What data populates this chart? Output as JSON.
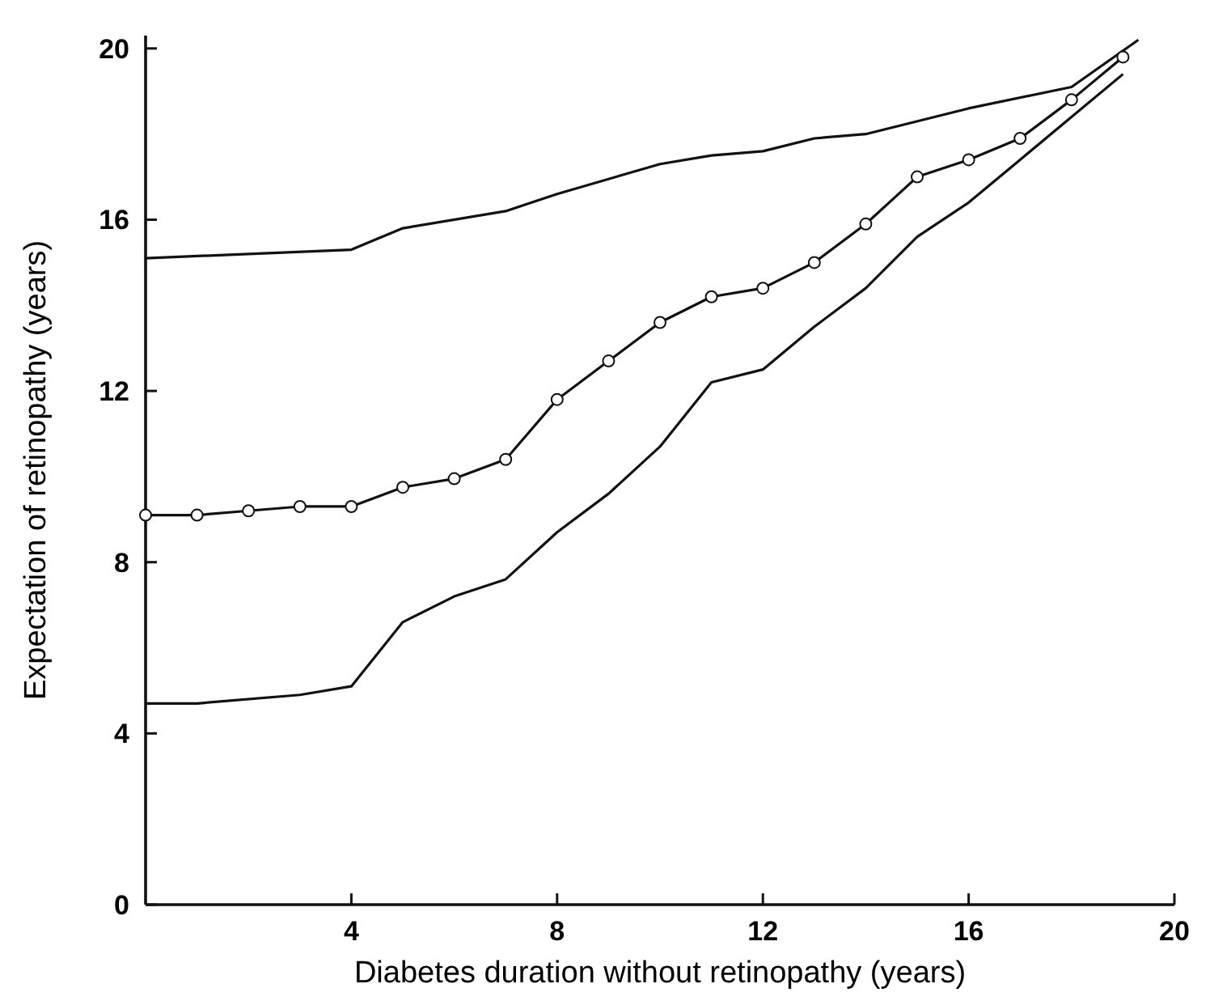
{
  "chart_data": {
    "type": "line",
    "xlabel": "Diabetes duration without retinopathy (years)",
    "ylabel": "Expectation of retinopathy (years)",
    "xlim": [
      0,
      20
    ],
    "ylim": [
      0,
      20.3
    ],
    "xticks": [
      4,
      8,
      12,
      16,
      20
    ],
    "yticks": [
      0,
      4,
      8,
      12,
      16,
      20
    ],
    "series": [
      {
        "color": "#111111",
        "marker": "none",
        "x": [
          0,
          2,
          4,
          5,
          7,
          8,
          10,
          11,
          12,
          13,
          14,
          16,
          18,
          19.3
        ],
        "values": [
          15.1,
          15.2,
          15.3,
          15.8,
          16.2,
          16.6,
          17.3,
          17.5,
          17.6,
          17.9,
          18.0,
          18.6,
          19.1,
          20.2
        ]
      },
      {
        "color": "#111111",
        "marker": "circle",
        "x": [
          0,
          1,
          2,
          3,
          4,
          5,
          6,
          7,
          8,
          9,
          10,
          11,
          12,
          13,
          14,
          15,
          16,
          17,
          18,
          19
        ],
        "values": [
          9.1,
          9.1,
          9.2,
          9.3,
          9.3,
          9.75,
          9.95,
          10.4,
          11.8,
          12.7,
          13.6,
          14.2,
          14.4,
          15.0,
          15.9,
          17.0,
          17.4,
          17.9,
          18.8,
          19.8
        ]
      },
      {
        "color": "#111111",
        "marker": "none",
        "x": [
          0,
          1,
          3,
          4,
          5,
          6,
          7,
          8,
          9,
          10,
          11,
          12,
          13,
          14,
          15,
          16,
          17,
          18,
          19
        ],
        "values": [
          4.7,
          4.7,
          4.9,
          5.1,
          6.6,
          7.2,
          7.6,
          8.7,
          9.6,
          10.7,
          12.2,
          12.5,
          13.5,
          14.4,
          15.6,
          16.4,
          17.4,
          18.4,
          19.4
        ]
      }
    ]
  }
}
